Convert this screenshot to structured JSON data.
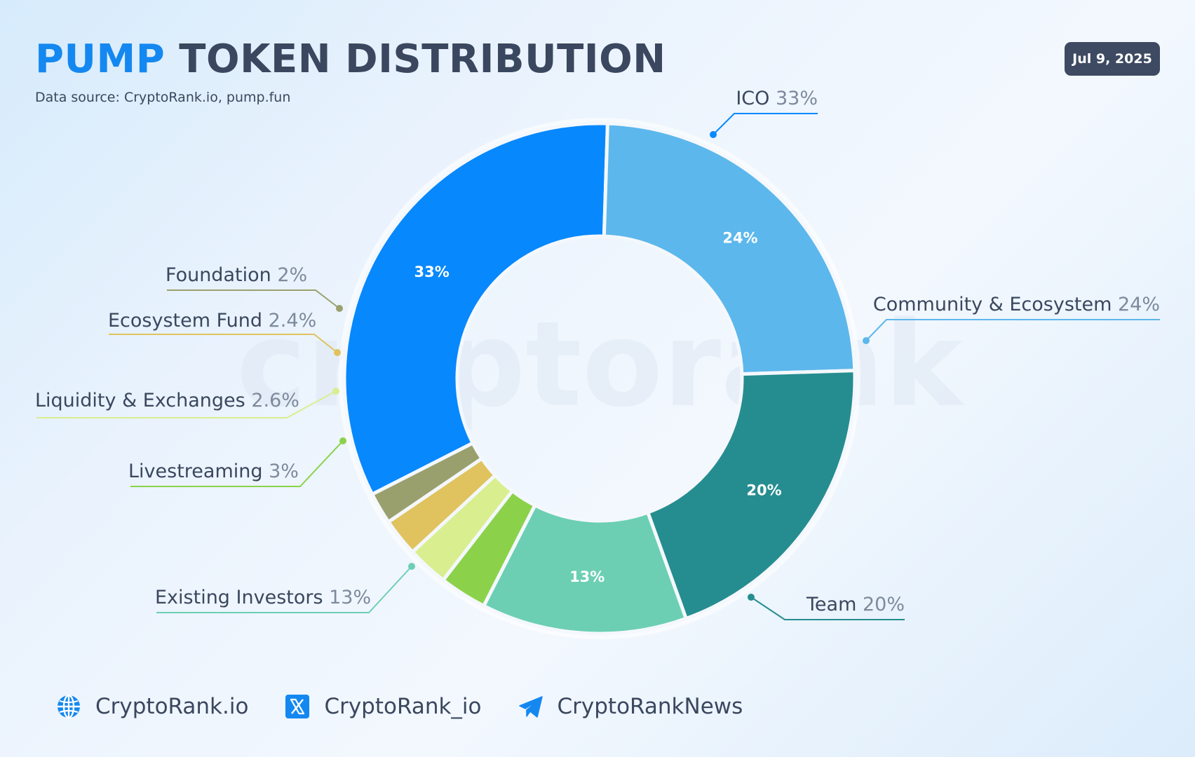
{
  "header": {
    "title_accent": "PUMP",
    "title_rest": "TOKEN DISTRIBUTION",
    "subtitle": "Data source: CryptoRank.io, pump.fun",
    "date": "Jul 9, 2025"
  },
  "watermark": "cryptorank",
  "chart_data": {
    "type": "pie",
    "variant": "donut",
    "legend_placement": "callout labels around the chart",
    "categories": [
      "ICO",
      "Community & Ecosystem",
      "Team",
      "Existing Investors",
      "Livestreaming",
      "Liquidity & Exchanges",
      "Ecosystem Fund",
      "Foundation"
    ],
    "values": [
      33,
      24,
      20,
      13,
      3,
      2.6,
      2.4,
      2
    ],
    "value_labels": [
      "33%",
      "24%",
      "20%",
      "13%",
      "3%",
      "2.6%",
      "2.4%",
      "2%"
    ],
    "colors": [
      "#0788fd",
      "#5cb7ec",
      "#258d8f",
      "#6ccfb3",
      "#8bd24a",
      "#d9ee8f",
      "#e0c35e",
      "#9aa06d"
    ]
  },
  "footer": {
    "items": [
      {
        "icon": "globe-icon",
        "label": "CryptoRank.io"
      },
      {
        "icon": "x-logo-icon",
        "label": "CryptoRank_io"
      },
      {
        "icon": "telegram-icon",
        "label": "CryptoRankNews"
      }
    ]
  }
}
